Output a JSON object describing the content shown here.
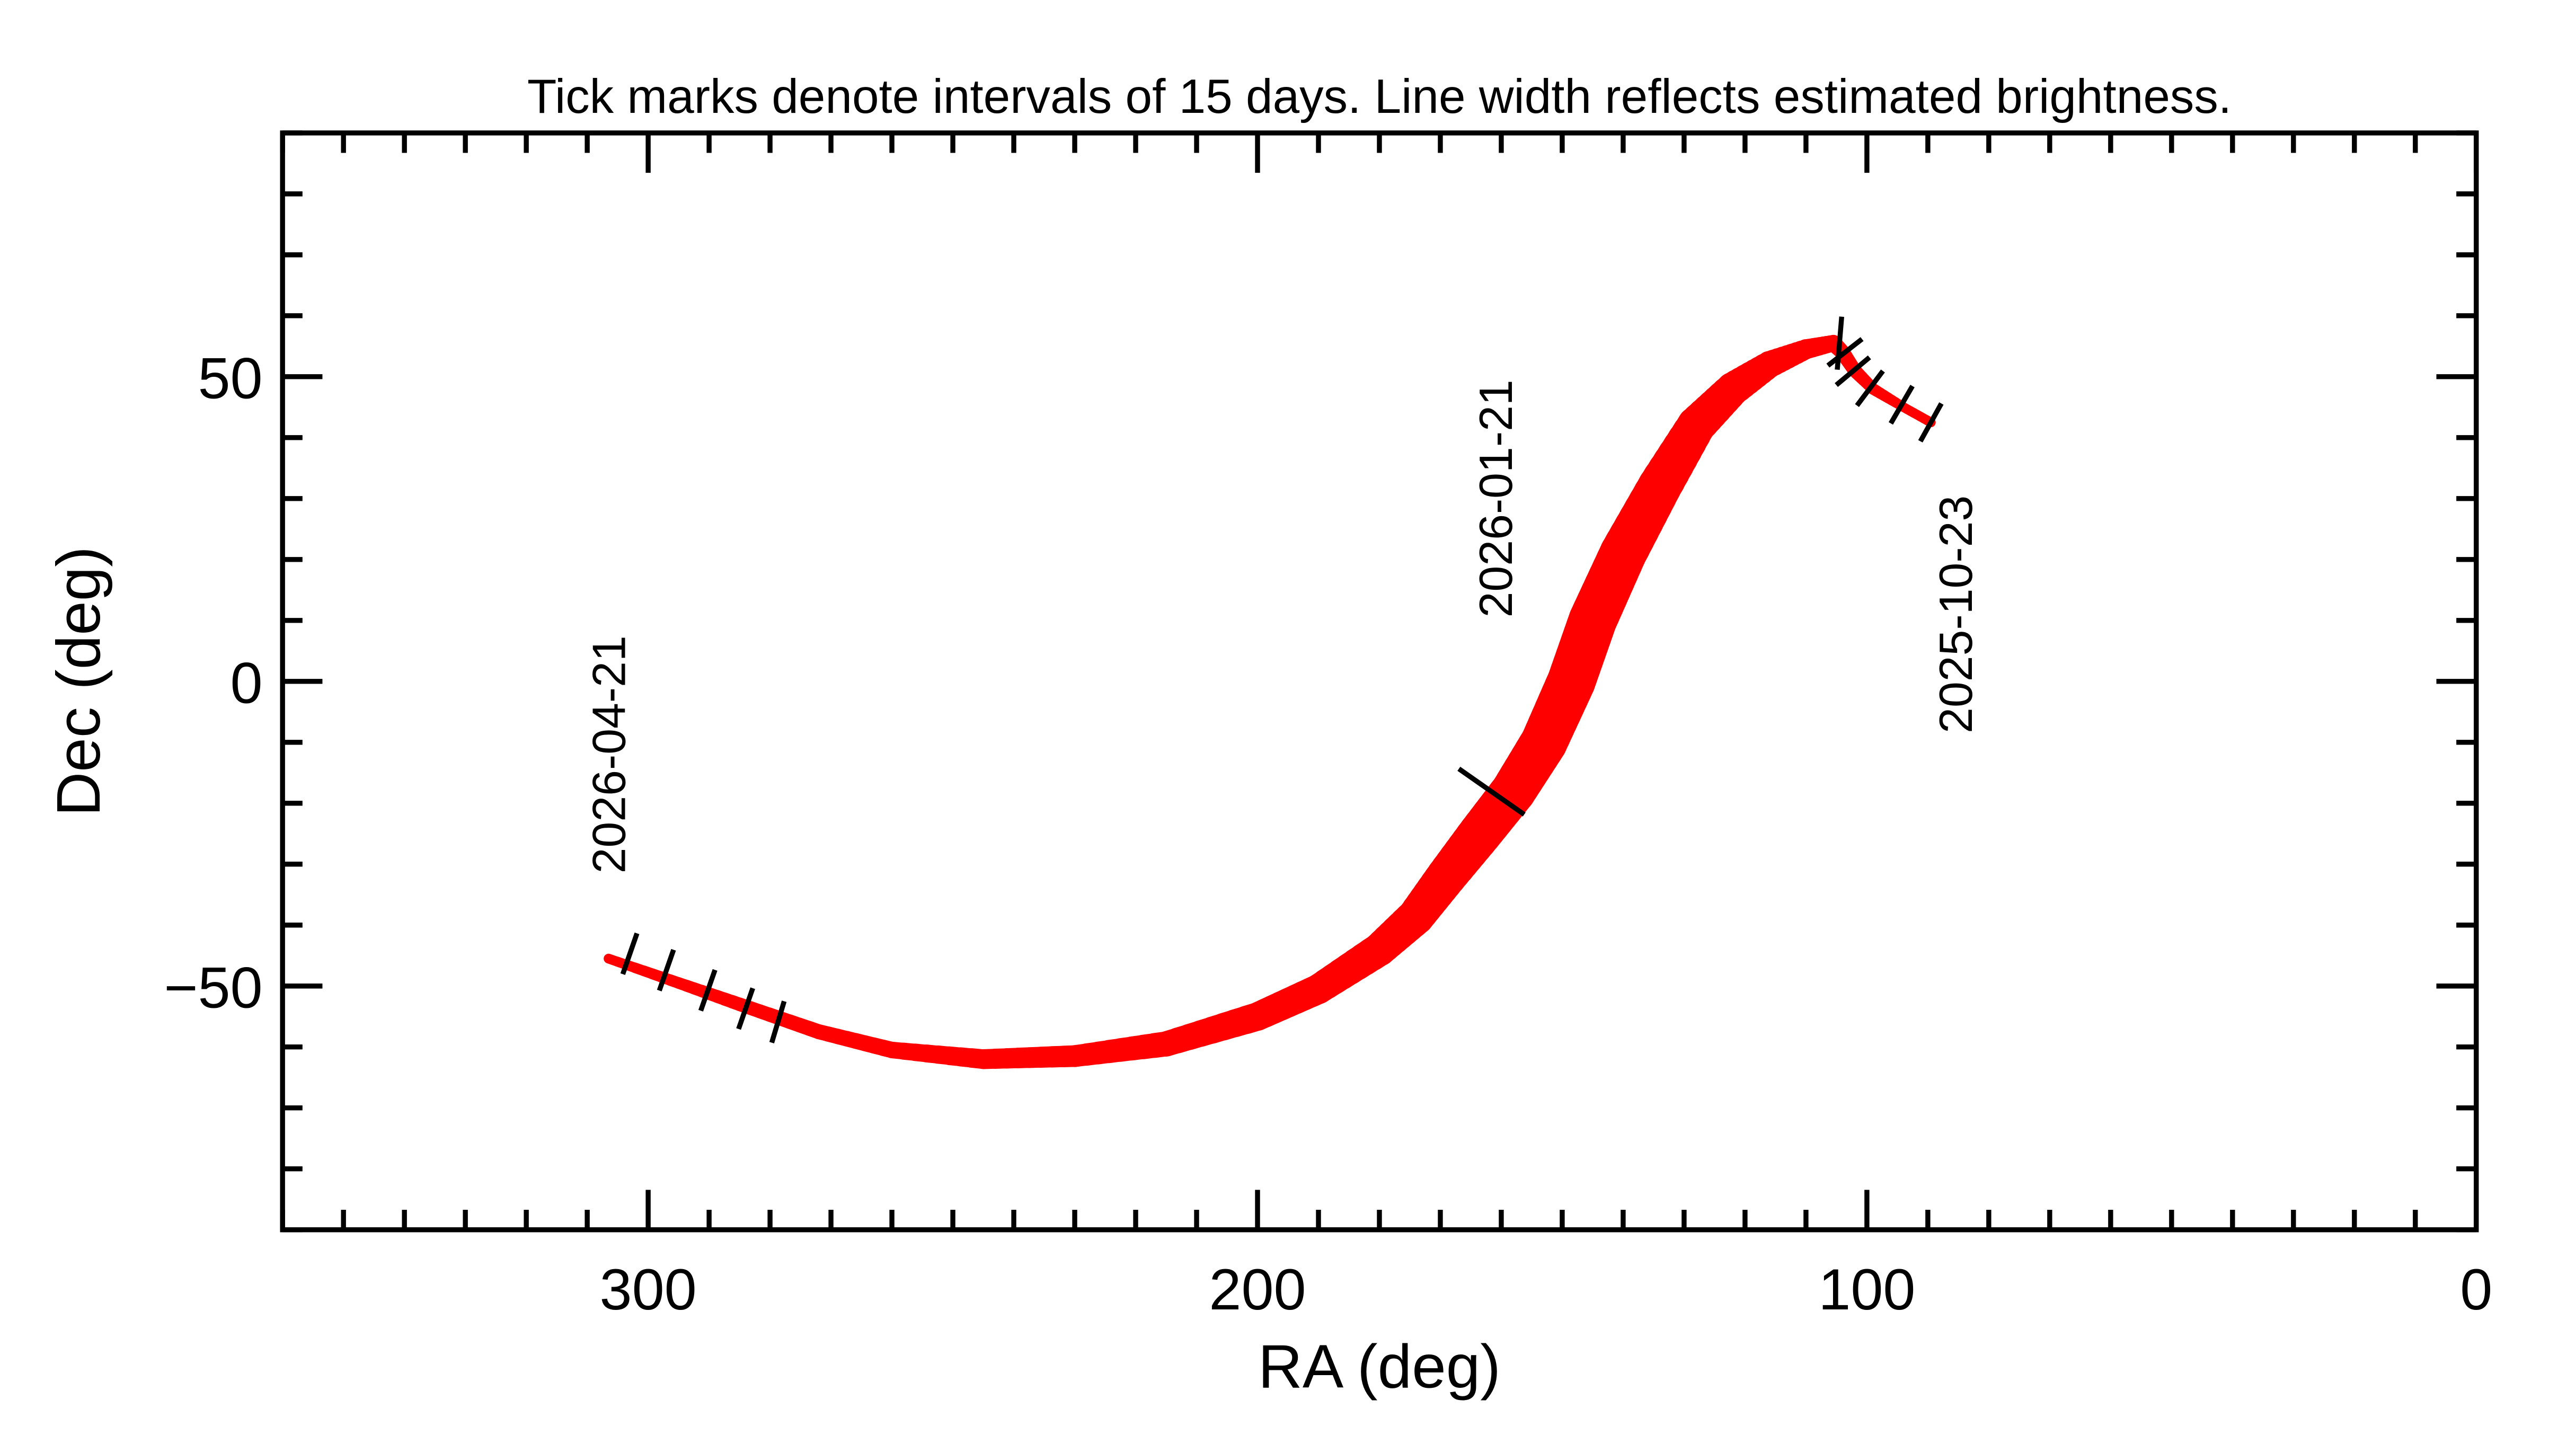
{
  "chart_data": {
    "type": "line",
    "title": "Tick marks denote intervals of 15 days.  Line width reflects estimated brightness.",
    "xlabel": "RA (deg)",
    "ylabel": "Dec (deg)",
    "xlim": [
      360,
      0
    ],
    "ylim": [
      -90,
      90
    ],
    "x_reversed": true,
    "grid": false,
    "x_ticks": [
      300,
      200,
      100,
      0
    ],
    "x_tick_labels": [
      "300",
      "200",
      "100",
      "0"
    ],
    "y_ticks": [
      50,
      0,
      -50
    ],
    "y_tick_labels": [
      "50",
      "0",
      "−50"
    ],
    "line_color": "#ff0000",
    "tick_color": "#000000",
    "track": {
      "ra": [
        89.5,
        94,
        99,
        102,
        104,
        105.5,
        110,
        116,
        122,
        128,
        134,
        140,
        145,
        148.5,
        153,
        158,
        163.5,
        169,
        174,
        180,
        190,
        200,
        215,
        230,
        245,
        260,
        272,
        285,
        295,
        306.5
      ],
      "dec": [
        42.5,
        45,
        48,
        51,
        54,
        55.5,
        54.5,
        52,
        48,
        42,
        32,
        21,
        10,
        0,
        -10,
        -18,
        -25,
        -32,
        -38.6,
        -44,
        -50.5,
        -55,
        -59.5,
        -61.5,
        -62,
        -60.5,
        -57.5,
        -53,
        -49.5,
        -45.5
      ],
      "relative_brightness": [
        0.2,
        0.2,
        0.24,
        0.28,
        0.31,
        0.34,
        0.41,
        0.55,
        0.69,
        0.79,
        0.9,
        0.97,
        1.0,
        1.0,
        0.97,
        0.93,
        0.9,
        0.83,
        0.76,
        0.69,
        0.62,
        0.59,
        0.52,
        0.45,
        0.41,
        0.34,
        0.31,
        0.28,
        0.24,
        0.2
      ]
    },
    "tick_marks": [
      {
        "ra": 89.5,
        "dec": 42.5
      },
      {
        "ra": 94.3,
        "dec": 45.4
      },
      {
        "ra": 99.5,
        "dec": 48.1
      },
      {
        "ra": 102.3,
        "dec": 50.9
      },
      {
        "ra": 103.6,
        "dec": 54.0
      },
      {
        "ra": 104.5,
        "dec": 55.5
      },
      {
        "ra": 161.6,
        "dec": -18.1
      },
      {
        "ra": 278.7,
        "dec": -55.9
      },
      {
        "ra": 284,
        "dec": -53.7
      },
      {
        "ra": 290.2,
        "dec": -50.7
      },
      {
        "ra": 297,
        "dec": -47.4
      },
      {
        "ra": 303,
        "dec": -44.7
      }
    ],
    "date_labels": [
      {
        "text": "2025-10-23",
        "ra": 85.5,
        "dec": 11
      },
      {
        "text": "2026-01-21",
        "ra": 161,
        "dec": 30
      },
      {
        "text": "2026-04-21",
        "ra": 306.5,
        "dec": -12
      }
    ]
  }
}
